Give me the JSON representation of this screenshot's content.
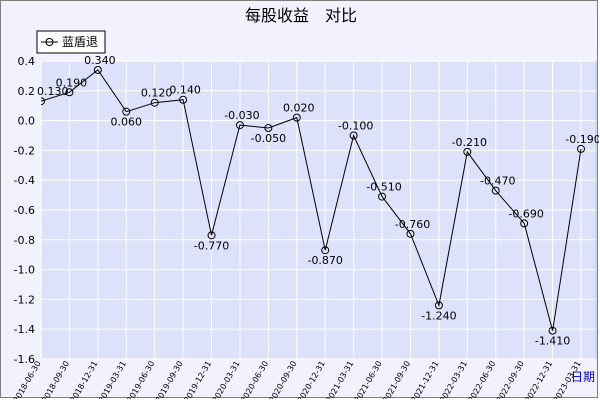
{
  "chart_data": {
    "type": "line",
    "title": "每股收益　对比",
    "xlabel": "日期",
    "ylabel": "",
    "ylim": [
      -1.6,
      0.4
    ],
    "yticks": [
      0.4,
      0.2,
      0.0,
      -0.2,
      -0.4,
      -0.6,
      -0.8,
      -1.0,
      -1.2,
      -1.4,
      -1.6
    ],
    "ytick_labels": [
      "0.4",
      "0.2",
      "0.0",
      "-0.2",
      "-0.4",
      "-0.6",
      "-0.8",
      "-1.0",
      "-1.2",
      "-1.4",
      "-1.6"
    ],
    "grid": true,
    "legend_position": "top-left",
    "categories": [
      "2018-06-30",
      "2018-09-30",
      "2018-12-31",
      "2019-03-31",
      "2019-06-30",
      "2019-09-30",
      "2019-12-31",
      "2020-03-31",
      "2020-06-30",
      "2020-09-30",
      "2020-12-31",
      "2021-03-31",
      "2021-06-30",
      "2021-09-30",
      "2021-12-31",
      "2022-03-31",
      "2022-06-30",
      "2022-09-30",
      "2022-12-31",
      "2023-03-31"
    ],
    "series": [
      {
        "name": "蓝盾退",
        "values": [
          0.13,
          0.19,
          0.34,
          0.06,
          0.12,
          0.14,
          -0.77,
          -0.03,
          -0.05,
          0.02,
          -0.87,
          -0.1,
          -0.51,
          -0.76,
          -1.24,
          -0.21,
          -0.47,
          -0.69,
          -1.41,
          -0.19
        ],
        "labels": [
          "0.130",
          "0.190",
          "0.340",
          "0.060",
          "0.120",
          "0.140",
          "-0.770",
          "-0.030",
          "-0.050",
          "0.020",
          "-0.870",
          "-0.100",
          "-0.510",
          "-0.760",
          "-1.240",
          "-0.210",
          "-0.470",
          "-0.690",
          "-1.410",
          "-0.190"
        ],
        "color": "#000000"
      }
    ],
    "colors": {
      "plot_background": "#dde2fa",
      "grid": "#ffffff",
      "outer_background": "#f2f2ff",
      "line": "#000000",
      "xlabel": "#0000cc"
    }
  }
}
